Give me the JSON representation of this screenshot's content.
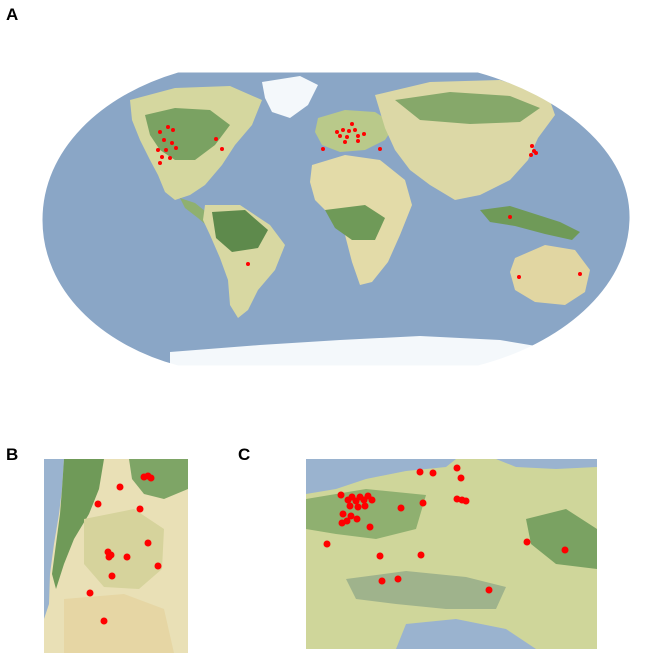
{
  "panels": {
    "a_label": "A",
    "b_label": "B",
    "c_label": "C"
  },
  "colors": {
    "ocean": "#8aa6c6",
    "land_light": "#e7e1b0",
    "land_mid": "#c9d294",
    "forest": "#6f9a58",
    "forest_dark": "#557c45",
    "ice": "#f4f8fb",
    "marker": "#ff0000"
  }
}
